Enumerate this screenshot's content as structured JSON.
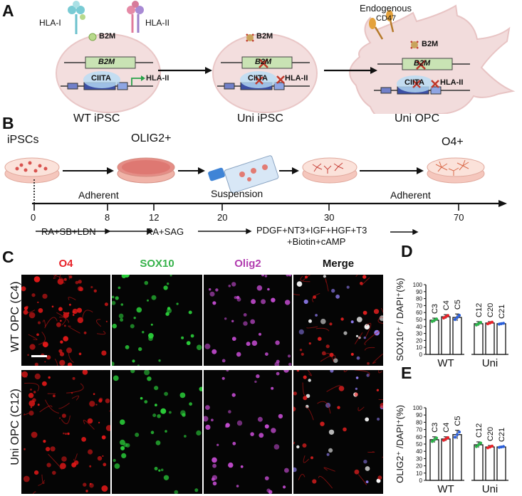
{
  "panels": {
    "a": "A",
    "b": "B",
    "c": "C",
    "d": "D",
    "e": "E"
  },
  "panel_a": {
    "hla1": "HLA-I",
    "hla2": "HLA-II",
    "b2m": "B2M",
    "b2m_gene": "B2M",
    "ciita": "CIITA",
    "hla2_gene": "HLA-II",
    "endogenous": "Endogenous",
    "cd47": "CD47",
    "cells": [
      "WT iPSC",
      "Uni iPSC",
      "Uni OPC"
    ]
  },
  "panel_b": {
    "stages": [
      "iPSCs",
      "OLIG2+",
      "O4+"
    ],
    "adherent1": "Adherent",
    "suspension": "Suspension",
    "adherent2": "Adherent",
    "days": [
      "0",
      "8",
      "12",
      "20",
      "30",
      "70"
    ],
    "factors": [
      "RA+SB+LDN",
      "RA+SAG",
      "PDGF+NT3+IGF+HGF+T3",
      "+Biotin+cAMP"
    ]
  },
  "panel_c": {
    "channels": [
      "O4",
      "SOX10",
      "Olig2",
      "Merge"
    ],
    "channel_colors": [
      "#e8232a",
      "#36b24a",
      "#b23db0",
      "#111111"
    ],
    "rows": [
      "WT OPC (C4)",
      "Uni OPC (C12)"
    ]
  },
  "chart_data": [
    {
      "type": "bar",
      "ylabel": "SOX10⁺ / DAPI⁺(%)",
      "ylim": [
        0,
        100
      ],
      "yticks": [
        "0",
        "10",
        "20",
        "30",
        "40",
        "50",
        "60",
        "70",
        "80",
        "90",
        "100"
      ],
      "groups": [
        "WT",
        "Uni"
      ],
      "categories": [
        "C3",
        "C4",
        "C5",
        "C12",
        "C20",
        "C21"
      ],
      "values": [
        49,
        54,
        53,
        44,
        45,
        44
      ],
      "errors": [
        3,
        3,
        5,
        3,
        2,
        1
      ],
      "point_colors": [
        "#2bb34a",
        "#e8232a",
        "#2b5fd9",
        "#2bb34a",
        "#e8232a",
        "#2b5fd9"
      ]
    },
    {
      "type": "bar",
      "ylabel": "OLIG2⁺ /DAPI⁺(%)",
      "ylim": [
        0,
        100
      ],
      "yticks": [
        "0",
        "10",
        "20",
        "30",
        "40",
        "50",
        "60",
        "70",
        "80",
        "90",
        "100"
      ],
      "groups": [
        "WT",
        "Uni"
      ],
      "categories": [
        "C3",
        "C4",
        "C5",
        "C12",
        "C20",
        "C21"
      ],
      "values": [
        56,
        57,
        63,
        49,
        46,
        46
      ],
      "errors": [
        4,
        3,
        6,
        4,
        2,
        1
      ],
      "point_colors": [
        "#2bb34a",
        "#e8232a",
        "#2b5fd9",
        "#2bb34a",
        "#e8232a",
        "#2b5fd9"
      ]
    }
  ]
}
